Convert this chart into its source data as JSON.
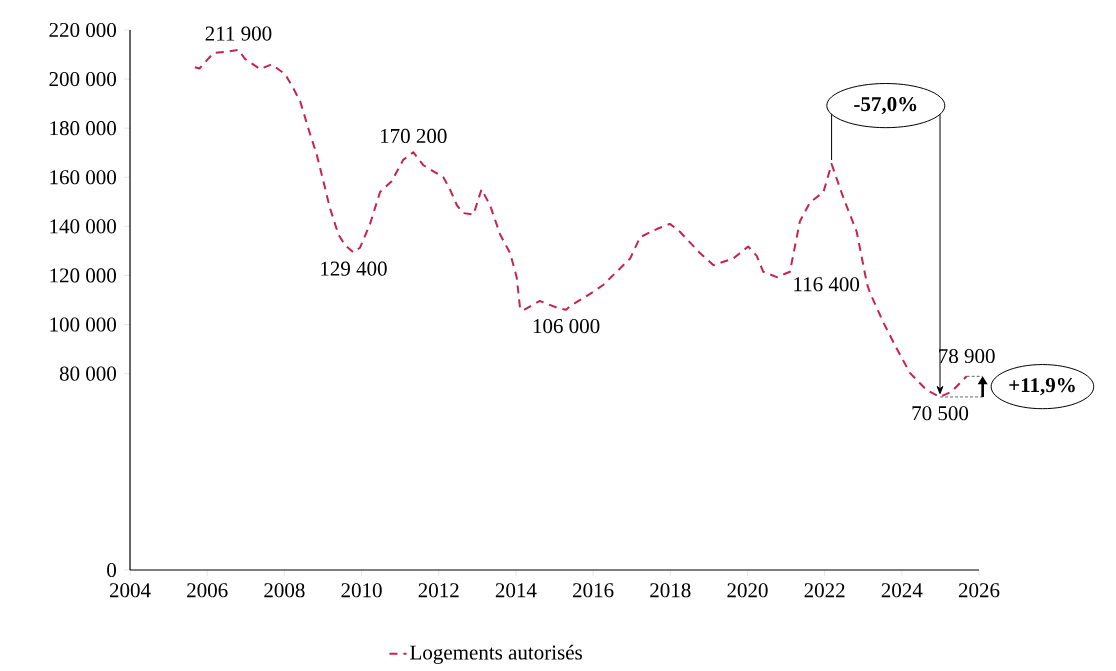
{
  "chart_data": {
    "type": "line",
    "xlim": [
      2004,
      2026
    ],
    "xticks": [
      2004,
      2006,
      2008,
      2010,
      2012,
      2014,
      2016,
      2018,
      2020,
      2022,
      2024,
      2026
    ],
    "ylim": [
      0,
      220000
    ],
    "yticks": [
      {
        "value": 0,
        "label": "0"
      },
      {
        "value": 80000,
        "label": "80 000"
      },
      {
        "value": 100000,
        "label": "100 000"
      },
      {
        "value": 120000,
        "label": "120 000"
      },
      {
        "value": 140000,
        "label": "140 000"
      },
      {
        "value": 160000,
        "label": "160 000"
      },
      {
        "value": 180000,
        "label": "180 000"
      },
      {
        "value": 200000,
        "label": "200 000"
      },
      {
        "value": 220000,
        "label": "220 000"
      }
    ],
    "x": [
      2005.68,
      2005.8,
      2006.16,
      2006.59,
      2006.81,
      2006.98,
      2007.37,
      2007.67,
      2008.02,
      2008.23,
      2008.41,
      2008.66,
      2008.84,
      2009.01,
      2009.18,
      2009.4,
      2009.57,
      2009.79,
      2009.96,
      2010.22,
      2010.48,
      2010.78,
      2011.08,
      2011.34,
      2011.6,
      2012.12,
      2012.29,
      2012.47,
      2012.64,
      2012.9,
      2013.11,
      2013.33,
      2013.59,
      2013.85,
      2014.02,
      2014.11,
      2014.19,
      2014.62,
      2015.06,
      2015.3,
      2015.4,
      2016.01,
      2016.26,
      2016.61,
      2016.96,
      2017.22,
      2017.65,
      2017.99,
      2018.25,
      2018.77,
      2019.12,
      2019.63,
      2020.02,
      2020.24,
      2020.41,
      2020.76,
      2021.1,
      2021.36,
      2021.62,
      2021.97,
      2022.18,
      2022.48,
      2022.83,
      2023.1,
      2023.18,
      2023.52,
      2023.87,
      2024.21,
      2024.64,
      2024.99,
      2025.29,
      2025.68
    ],
    "series": [
      {
        "name": "Logements autorisés",
        "color": "#c8234e",
        "values": [
          204800,
          204300,
          210600,
          211300,
          211900,
          208200,
          204100,
          206000,
          202000,
          196300,
          190900,
          177900,
          169200,
          158400,
          147500,
          136700,
          132400,
          129400,
          131300,
          141000,
          154000,
          158400,
          167100,
          170200,
          164900,
          160000,
          155100,
          148600,
          145400,
          144800,
          155100,
          148600,
          136700,
          129100,
          119300,
          106300,
          105800,
          109600,
          106900,
          106000,
          107400,
          113400,
          116100,
          121500,
          126900,
          135600,
          138900,
          141000,
          137800,
          129100,
          124200,
          126900,
          131800,
          128000,
          121500,
          119300,
          121500,
          142100,
          149700,
          154000,
          165400,
          151900,
          137800,
          116400,
          112800,
          100900,
          90100,
          80300,
          73300,
          70500,
          72700,
          78900
        ],
        "value_labels": [
          null,
          null,
          null,
          null,
          "211 900",
          null,
          null,
          null,
          null,
          null,
          null,
          null,
          null,
          null,
          null,
          null,
          null,
          "129 400",
          null,
          null,
          null,
          null,
          null,
          "170 200",
          null,
          null,
          null,
          null,
          null,
          null,
          null,
          null,
          null,
          null,
          null,
          null,
          null,
          null,
          null,
          "106 000",
          null,
          null,
          null,
          null,
          null,
          null,
          null,
          null,
          null,
          null,
          null,
          null,
          null,
          null,
          null,
          null,
          null,
          null,
          null,
          null,
          null,
          null,
          null,
          "116 400",
          null,
          null,
          null,
          null,
          null,
          "70 500",
          null,
          "78 900"
        ]
      }
    ],
    "annotations": [
      {
        "text": "-57,0%",
        "x": 2024.99,
        "y": 70500
      },
      {
        "text": "+11,9%",
        "x": 2025.68,
        "y": 78900
      }
    ],
    "line_style": "dashed",
    "legend": "bottom"
  }
}
